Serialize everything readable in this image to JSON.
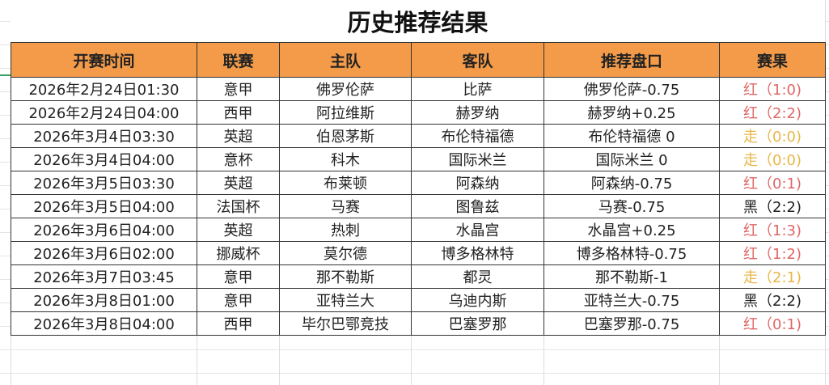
{
  "title": "历史推荐结果",
  "headers": [
    "开赛时间",
    "联赛",
    "主队",
    "客队",
    "推荐盘口",
    "赛果"
  ],
  "colors": {
    "header_bg": "#f39b49",
    "win": "#e06666",
    "push": "#e9b646",
    "loss": "#222222"
  },
  "rows": [
    {
      "time": "2026年2月24日01:30",
      "league": "意甲",
      "home": "佛罗伦萨",
      "away": "比萨",
      "pick": "佛罗伦萨-0.75",
      "result": "红（1:0)",
      "status": "red"
    },
    {
      "time": "2026年2月24日04:00",
      "league": "西甲",
      "home": "阿拉维斯",
      "away": "赫罗纳",
      "pick": "赫罗纳+0.25",
      "result": "红（2:2)",
      "status": "red"
    },
    {
      "time": "2026年3月4日03:30",
      "league": "英超",
      "home": "伯恩茅斯",
      "away": "布伦特福德",
      "pick": "布伦特福德 0",
      "result": "走（0:0)",
      "status": "draw"
    },
    {
      "time": "2026年3月4日04:00",
      "league": "意杯",
      "home": "科木",
      "away": "国际米兰",
      "pick": "国际米兰 0",
      "result": "走（0:0)",
      "status": "draw"
    },
    {
      "time": "2026年3月5日03:30",
      "league": "英超",
      "home": "布莱顿",
      "away": "阿森纳",
      "pick": "阿森纳-0.75",
      "result": "红（0:1)",
      "status": "red"
    },
    {
      "time": "2026年3月5日04:00",
      "league": "法国杯",
      "home": "马赛",
      "away": "图鲁兹",
      "pick": "马赛-0.75",
      "result": "黑（2:2)",
      "status": "black"
    },
    {
      "time": "2026年3月6日04:00",
      "league": "英超",
      "home": "热刺",
      "away": "水晶宫",
      "pick": "水晶宫+0.25",
      "result": "红（1:3)",
      "status": "red"
    },
    {
      "time": "2026年3月6日02:00",
      "league": "挪威杯",
      "home": "莫尔德",
      "away": "博多格林特",
      "pick": "博多格林特-0.75",
      "result": "红（1:2)",
      "status": "red"
    },
    {
      "time": "2026年3月7日03:45",
      "league": "意甲",
      "home": "那不勒斯",
      "away": "都灵",
      "pick": "那不勒斯-1",
      "result": "走（2:1)",
      "status": "draw"
    },
    {
      "time": "2026年3月8日01:00",
      "league": "意甲",
      "home": "亚特兰大",
      "away": "乌迪内斯",
      "pick": "亚特兰大-0.75",
      "result": "黑（2:2)",
      "status": "black"
    },
    {
      "time": "2026年3月8日04:00",
      "league": "西甲",
      "home": "毕尔巴鄂竞技",
      "away": "巴塞罗那",
      "pick": "巴塞罗那-0.75",
      "result": "红（0:1)",
      "status": "red"
    }
  ]
}
